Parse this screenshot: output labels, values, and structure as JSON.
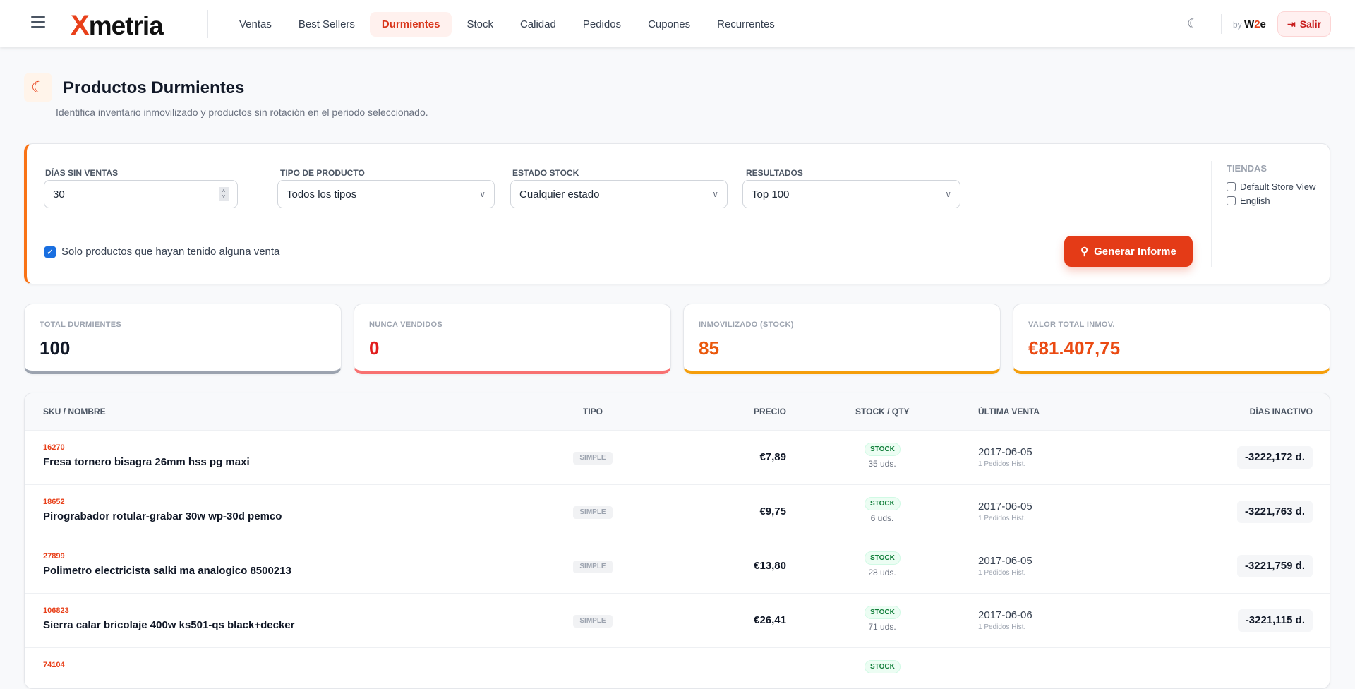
{
  "header": {
    "logo_mark": "X",
    "logo_text": "metria",
    "nav": [
      {
        "label": "Ventas",
        "active": false
      },
      {
        "label": "Best Sellers",
        "active": false
      },
      {
        "label": "Durmientes",
        "active": true
      },
      {
        "label": "Stock",
        "active": false
      },
      {
        "label": "Calidad",
        "active": false
      },
      {
        "label": "Pedidos",
        "active": false
      },
      {
        "label": "Cupones",
        "active": false
      },
      {
        "label": "Recurrentes",
        "active": false
      }
    ],
    "by_label": "by",
    "brand_w": "W",
    "brand_2": "2",
    "brand_e": "e",
    "logout_label": "Salir"
  },
  "page": {
    "title": "Productos Durmientes",
    "subtitle": "Identifica inventario inmovilizado y productos sin rotación en el periodo seleccionado."
  },
  "filters": {
    "dias_label": "Días sin ventas",
    "dias_value": "30",
    "tipo_label": "Tipo de producto",
    "tipo_value": "Todos los tipos",
    "estado_label": "Estado stock",
    "estado_value": "Cualquier estado",
    "resultados_label": "Resultados",
    "resultados_value": "Top 100",
    "only_sold_label": "Solo productos que hayan tenido alguna venta",
    "only_sold_checked": true,
    "generate_label": "Generar Informe",
    "tiendas_label": "Tiendas",
    "tiendas": [
      {
        "label": "Default Store View",
        "checked": false
      },
      {
        "label": "English",
        "checked": false
      }
    ]
  },
  "stats": [
    {
      "label": "TOTAL DURMIENTES",
      "value": "100",
      "color": "#111827",
      "bar": "#9ca3af"
    },
    {
      "label": "NUNCA VENDIDOS",
      "value": "0",
      "color": "#e11d1d",
      "bar": "#f87171"
    },
    {
      "label": "INMOVILIZADO (STOCK)",
      "value": "85",
      "color": "#ea580c",
      "bar": "#f59e0b"
    },
    {
      "label": "VALOR TOTAL INMOV.",
      "value": "€81.407,75",
      "color": "#ea4a12",
      "bar": "#f59e0b"
    }
  ],
  "table": {
    "columns": [
      "SKU / NOMBRE",
      "TIPO",
      "PRECIO",
      "STOCK / QTY",
      "ÚLTIMA VENTA",
      "DÍAS INACTIVO"
    ],
    "rows": [
      {
        "sku": "16270",
        "name": "Fresa tornero bisagra 26mm hss pg maxi",
        "tipo": "SIMPLE",
        "precio": "€7,89",
        "stock": "STOCK",
        "qty": "35 uds.",
        "date": "2017-06-05",
        "hist": "1 Pedidos Hist.",
        "dias": "-3222,172 d."
      },
      {
        "sku": "18652",
        "name": "Pirograbador rotular-grabar 30w wp-30d pemco",
        "tipo": "SIMPLE",
        "precio": "€9,75",
        "stock": "STOCK",
        "qty": "6 uds.",
        "date": "2017-06-05",
        "hist": "1 Pedidos Hist.",
        "dias": "-3221,763 d."
      },
      {
        "sku": "27899",
        "name": "Polimetro electricista salki ma analogico 8500213",
        "tipo": "SIMPLE",
        "precio": "€13,80",
        "stock": "STOCK",
        "qty": "28 uds.",
        "date": "2017-06-05",
        "hist": "1 Pedidos Hist.",
        "dias": "-3221,759 d."
      },
      {
        "sku": "106823",
        "name": "Sierra calar bricolaje 400w ks501-qs black+decker",
        "tipo": "SIMPLE",
        "precio": "€26,41",
        "stock": "STOCK",
        "qty": "71 uds.",
        "date": "2017-06-06",
        "hist": "1 Pedidos Hist.",
        "dias": "-3221,115 d."
      },
      {
        "sku": "74104",
        "name": "",
        "tipo": "",
        "precio": "",
        "stock": "STOCK",
        "qty": "",
        "date": "",
        "hist": "",
        "dias": ""
      }
    ]
  }
}
